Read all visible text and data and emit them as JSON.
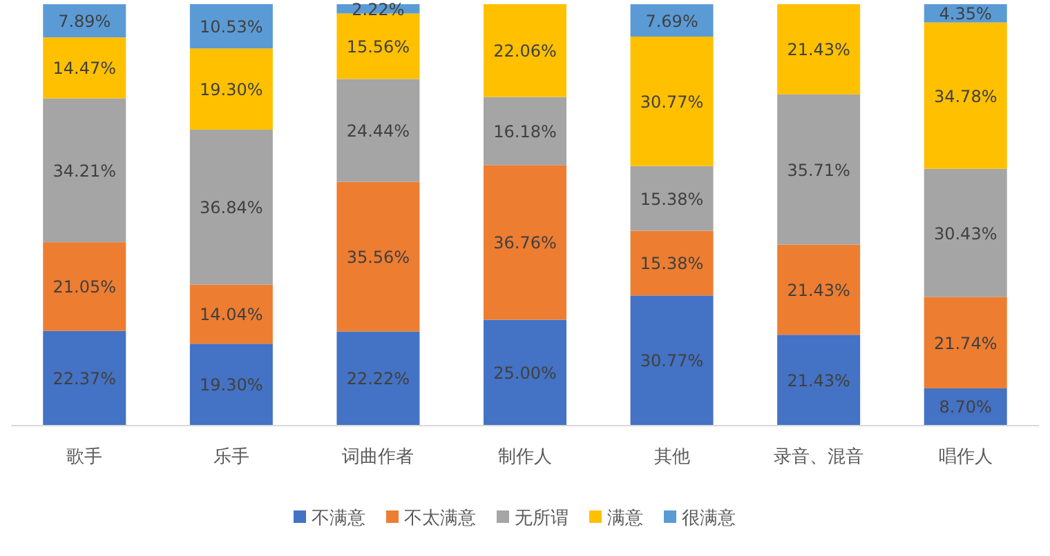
{
  "chart_data": {
    "type": "bar",
    "stacked": true,
    "legend": "bottom",
    "categories": [
      "歌手",
      "乐手",
      "词曲作者",
      "制作人",
      "其他",
      "录音、混音",
      "唱作人"
    ],
    "series": [
      {
        "name": "不满意",
        "color": "#4472c4",
        "values": [
          22.37,
          19.3,
          22.22,
          25.0,
          30.77,
          21.43,
          8.7
        ],
        "value_labels": [
          "22.37%",
          "19.30%",
          "22.22%",
          "25.00%",
          "30.77%",
          "21.43%",
          "8.70%"
        ]
      },
      {
        "name": "不太满意",
        "color": "#ed7d31",
        "values": [
          21.05,
          14.04,
          35.56,
          36.76,
          15.38,
          21.43,
          21.74
        ],
        "value_labels": [
          "21.05%",
          "14.04%",
          "35.56%",
          "36.76%",
          "15.38%",
          "21.43%",
          "21.74%"
        ]
      },
      {
        "name": "无所谓",
        "color": "#a5a5a5",
        "values": [
          34.21,
          36.84,
          24.44,
          16.18,
          15.38,
          35.71,
          30.43
        ],
        "value_labels": [
          "34.21%",
          "36.84%",
          "24.44%",
          "16.18%",
          "15.38%",
          "35.71%",
          "30.43%"
        ]
      },
      {
        "name": "满意",
        "color": "#ffc000",
        "values": [
          14.47,
          19.3,
          15.56,
          22.06,
          30.77,
          21.43,
          34.78
        ],
        "value_labels": [
          "14.47%",
          "19.30%",
          "15.56%",
          "22.06%",
          "30.77%",
          "21.43%",
          "34.78%"
        ]
      },
      {
        "name": "很满意",
        "color": "#5b9bd5",
        "values": [
          7.89,
          10.53,
          2.22,
          null,
          7.69,
          null,
          4.35
        ],
        "value_labels": [
          "7.89%",
          "10.53%",
          "2.22%",
          null,
          "7.69%",
          null,
          "4.35%"
        ]
      }
    ]
  }
}
